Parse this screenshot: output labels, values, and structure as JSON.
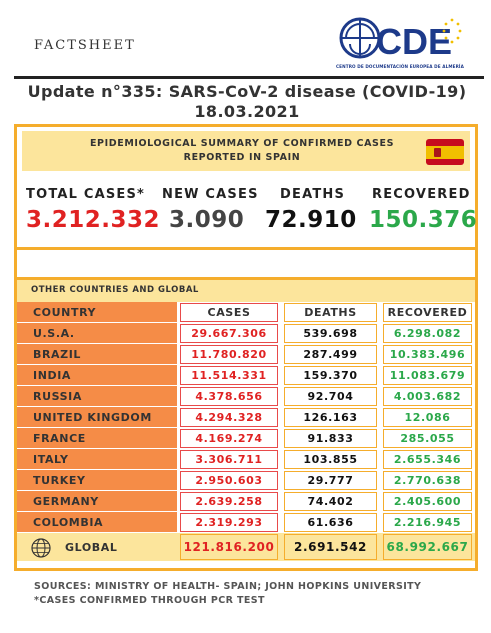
{
  "header": {
    "label": "FACTSHEET",
    "logo_text": "CDE",
    "logo_subtitle": "CENTRO DE DOCUMENTACIÓN EUROPEA DE ALMERÍA"
  },
  "title": "Update n°335: SARS-CoV-2 disease (COVID-19) 18.03.2021",
  "spain": {
    "heading_line1": "EPIDEMIOLOGICAL SUMMARY OF CONFIRMED CASES",
    "heading_line2": "REPORTED IN SPAIN",
    "total_cases_label": "TOTAL CASES*",
    "total_cases": "3.212.332",
    "new_cases_label": "NEW CASES",
    "new_cases": "3.090",
    "deaths_label": "DEATHS",
    "deaths": "72.910",
    "recovered_label": "RECOVERED",
    "recovered": "150.376"
  },
  "other": {
    "heading": "OTHER COUNTRIES AND GLOBAL",
    "columns": [
      "COUNTRY",
      "CASES",
      "DEATHS",
      "RECOVERED"
    ],
    "rows": [
      {
        "country": "U.S.A.",
        "cases": "29.667.306",
        "deaths": "539.698",
        "recovered": "6.298.082"
      },
      {
        "country": "BRAZIL",
        "cases": "11.780.820",
        "deaths": "287.499",
        "recovered": "10.383.496"
      },
      {
        "country": "INDIA",
        "cases": "11.514.331",
        "deaths": "159.370",
        "recovered": "11.083.679"
      },
      {
        "country": "RUSSIA",
        "cases": "4.378.656",
        "deaths": "92.704",
        "recovered": "4.003.682"
      },
      {
        "country": "UNITED KINGDOM",
        "cases": "4.294.328",
        "deaths": "126.163",
        "recovered": "12.086"
      },
      {
        "country": "FRANCE",
        "cases": "4.169.274",
        "deaths": "91.833",
        "recovered": "285.055"
      },
      {
        "country": "ITALY",
        "cases": "3.306.711",
        "deaths": "103.855",
        "recovered": "2.655.346"
      },
      {
        "country": "TURKEY",
        "cases": "2.950.603",
        "deaths": "29.777",
        "recovered": "2.770.638"
      },
      {
        "country": "GERMANY",
        "cases": "2.639.258",
        "deaths": "74.402",
        "recovered": "2.405.600"
      },
      {
        "country": "COLOMBIA",
        "cases": "2.319.293",
        "deaths": "61.636",
        "recovered": "2.216.945"
      }
    ],
    "global": {
      "label": "GLOBAL",
      "cases": "121.816.200",
      "deaths": "2.691.542",
      "recovered": "68.992.667"
    }
  },
  "footer": {
    "sources": "SOURCES: MINISTRY OF HEALTH- SPAIN; JOHN HOPKINS UNIVERSITY",
    "note": "*CASES CONFIRMED THROUGH PCR TEST"
  },
  "colors": {
    "accent": "#f5ad2c",
    "highlight": "#fce59c",
    "country_cell": "#f58c47",
    "cases_red": "#e02222",
    "recovered_green": "#2ba84a",
    "logo_blue": "#1d3a8a"
  },
  "icons": {
    "flag": "spain-flag-icon",
    "globe": "globe-icon",
    "logo": "cde-logo-icon"
  }
}
